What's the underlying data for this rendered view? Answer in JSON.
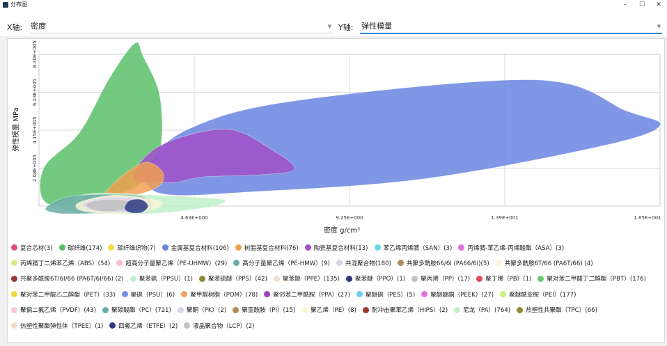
{
  "window": {
    "title": "分布图",
    "controls": [
      "–",
      "☐",
      "✕"
    ]
  },
  "toolbar": {
    "x_label": "X轴:",
    "x_value": "密度",
    "y_label": "Y轴:",
    "y_value": "弹性模量"
  },
  "chart_data": {
    "type": "area",
    "xlabel": "密度 g/cm³",
    "ylabel": "弹性模量 MPa",
    "x_ticks": [
      "4.63E+000",
      "9.25E+000",
      "1.39E+001",
      "1.85E+001"
    ],
    "y_ticks": [
      "2.08E+005",
      "4.15E+005",
      "6.23E+005",
      "8.30E+005"
    ],
    "xlim": [
      0,
      18.5
    ],
    "ylim": [
      0,
      830000
    ],
    "grid": true,
    "legend_position": "bottom",
    "series": [
      {
        "name": "复合芯材(3)",
        "color": "#e0507a"
      },
      {
        "name": "碳纤维(174)",
        "color": "#5cbf6a"
      },
      {
        "name": "碳纤维织物(7)",
        "color": "#f5dc4a"
      },
      {
        "name": "金属基复合材料(106)",
        "color": "#6a85e0"
      },
      {
        "name": "树脂基复合材料(76)",
        "color": "#f0a050"
      },
      {
        "name": "陶瓷基复合材料(13)",
        "color": "#a050c8"
      },
      {
        "name": "苯乙烯丙烯腈（SAN）(3)",
        "color": "#6ad8ea"
      },
      {
        "name": "丙烯腈-苯乙烯-丙烯酸酯（ASA）(3)",
        "color": "#e070e0"
      },
      {
        "name": "丙烯腈丁二烯苯乙烯（ABS）(54)",
        "color": "#d6ee88"
      },
      {
        "name": "超高分子量聚乙烯（PE-UHMW）(29)",
        "color": "#f6c0cf"
      },
      {
        "name": "高分子量聚乙烯（PE-HMW）(9)",
        "color": "#6aaca6"
      },
      {
        "name": "共混聚合物(180)",
        "color": "#dcd0f0"
      },
      {
        "name": "共聚多酰胺66/6I (PA66/6I)(5)",
        "color": "#b08a5a"
      },
      {
        "name": "共聚多酰胺6T/66 (PA6T/66) (4)",
        "color": "#fbf4d8"
      },
      {
        "name": "共聚多酰胺6T/6I/66 (PA6T/6I/66) (2)",
        "color": "#9a3a34"
      },
      {
        "name": "聚苯砜（PPSU）(1)",
        "color": "#c0f0c8"
      },
      {
        "name": "聚苯硫醚（PPS）(42)",
        "color": "#8a8a3a"
      },
      {
        "name": "聚苯醚（PPE）(135)",
        "color": "#f6dcc8"
      },
      {
        "name": "聚苯醚（PPO）(1)",
        "color": "#2c3a80"
      },
      {
        "name": "聚丙烯（PP）(17)",
        "color": "#c0c0c0"
      },
      {
        "name": "聚丁烯（PB）(1)",
        "color": "#e04a5a"
      },
      {
        "name": "聚对苯二甲酸丁二醇酯（PBT）(176)",
        "color": "#6cc870"
      },
      {
        "name": "聚对苯二甲酸乙二醇酯（PET）(33)",
        "color": "#f0dc40"
      },
      {
        "name": "聚砜（PSU）(6)",
        "color": "#7890e0"
      },
      {
        "name": "聚甲醛树脂（POM）(78)",
        "color": "#f0a060"
      },
      {
        "name": "聚邻苯二甲酰胺（PPA）(27)",
        "color": "#a040c0"
      },
      {
        "name": "聚醚砜（PES）(5)",
        "color": "#6ad0ea"
      },
      {
        "name": "聚醚醚酮（PEEK）(27)",
        "color": "#e070e0"
      },
      {
        "name": "聚醚酰亚胺（PEI）(177)",
        "color": "#d0ee80"
      },
      {
        "name": "聚偏二氟乙烯（PVDF）(43)",
        "color": "#f6c8d6"
      },
      {
        "name": "聚碳酸酯（PC）(721)",
        "color": "#6aaca6"
      },
      {
        "name": "聚酮（PK）(2)",
        "color": "#dcd0f0"
      },
      {
        "name": "聚亚酰胺（PI）(15)",
        "color": "#b08a5a"
      },
      {
        "name": "聚乙烯（PE）(8)",
        "color": "#fbf4c8"
      },
      {
        "name": "耐冲击聚苯乙烯（HIPS）(2)",
        "color": "#9a3a30"
      },
      {
        "name": "尼龙（PA）(764)",
        "color": "#c0f0c8"
      },
      {
        "name": "热塑性共聚酯（TPC）(66)",
        "color": "#8a8a30"
      },
      {
        "name": "热塑性聚酯弹性体（TPEE）(1)",
        "color": "#f6dcc8"
      },
      {
        "name": "四氟乙烯（ETFE）(2)",
        "color": "#2c3a80"
      },
      {
        "name": "液晶聚合物（LCP）(2)",
        "color": "#c0c0c0"
      }
    ],
    "regions": [
      {
        "series": "碳纤维(174)",
        "color": "#5cbf6a",
        "points": [
          [
            0.15,
            210000
          ],
          [
            1.2,
            400000
          ],
          [
            2.1,
            700000
          ],
          [
            2.85,
            890000
          ],
          [
            3.1,
            820000
          ],
          [
            3.6,
            600000
          ],
          [
            3.6,
            300000
          ],
          [
            3.0,
            120000
          ],
          [
            1.5,
            20000
          ],
          [
            0.2,
            20000
          ]
        ]
      },
      {
        "series": "金属基复合材料(106)",
        "color": "#6a85e0",
        "points": [
          [
            3.3,
            230000
          ],
          [
            4.5,
            425000
          ],
          [
            7.6,
            575000
          ],
          [
            14.8,
            690000
          ],
          [
            17.5,
            520000
          ],
          [
            18.5,
            440000
          ],
          [
            16.8,
            330000
          ],
          [
            11.5,
            150000
          ],
          [
            6.5,
            80000
          ],
          [
            3.6,
            70000
          ]
        ]
      },
      {
        "series": "陶瓷基复合材料(13)",
        "color": "#a050c8",
        "points": [
          [
            2.8,
            150000
          ],
          [
            3.6,
            330000
          ],
          [
            5.6,
            420000
          ],
          [
            7.0,
            300000
          ],
          [
            7.6,
            200000
          ],
          [
            6.5,
            170000
          ],
          [
            4.9,
            160000
          ],
          [
            4.0,
            130000
          ]
        ]
      },
      {
        "series": "树脂基复合材料(76)",
        "color": "#f0a050",
        "points": [
          [
            1.9,
            50000
          ],
          [
            2.5,
            170000
          ],
          [
            3.2,
            240000
          ],
          [
            3.7,
            180000
          ],
          [
            3.5,
            100000
          ],
          [
            2.4,
            40000
          ]
        ]
      },
      {
        "series": "聚醚酰亚胺（PEI）(177)",
        "color": "#d0ee80",
        "points": [
          [
            1.1,
            40000
          ],
          [
            2.1,
            50000
          ],
          [
            3.0,
            40000
          ],
          [
            2.2,
            25000
          ]
        ]
      },
      {
        "series": "尼龙（PA）(764)",
        "color": "#c0f0c8",
        "points": [
          [
            0.6,
            20000
          ],
          [
            1.6,
            70000
          ],
          [
            3.4,
            60000
          ],
          [
            5.3,
            40000
          ],
          [
            5.5,
            20000
          ],
          [
            4.9,
            -10000
          ],
          [
            3.4,
            -40000
          ],
          [
            1.5,
            -40000
          ],
          [
            0.6,
            -10000
          ]
        ]
      },
      {
        "series": "聚碳酸酯（PC）(721)",
        "color": "#6aaca6",
        "points": [
          [
            0.2,
            -10000
          ],
          [
            1.0,
            55000
          ],
          [
            2.8,
            60000
          ],
          [
            3.4,
            20000
          ],
          [
            3.1,
            -30000
          ],
          [
            1.6,
            -40000
          ],
          [
            0.6,
            -40000
          ]
        ]
      },
      {
        "series": "共聚多酰胺6T/66 (PA6T/66) (4)",
        "color": "#fbf4d8",
        "points": [
          [
            1.2,
            20000
          ],
          [
            2.2,
            60000
          ],
          [
            3.3,
            40000
          ],
          [
            3.7,
            10000
          ],
          [
            3.1,
            -30000
          ],
          [
            1.9,
            -40000
          ],
          [
            1.2,
            -20000
          ]
        ]
      },
      {
        "series": "聚酮（PK）(2)",
        "color": "#dcd0f0",
        "points": [
          [
            1.3,
            10000
          ],
          [
            2.0,
            45000
          ],
          [
            2.9,
            40000
          ],
          [
            3.2,
            0
          ],
          [
            2.8,
            -30000
          ],
          [
            1.8,
            -30000
          ]
        ]
      },
      {
        "series": "液晶聚合物（LCP）(2)",
        "color": "#c0c0c0",
        "points": [
          [
            1.4,
            10000
          ],
          [
            1.9,
            35000
          ],
          [
            2.6,
            30000
          ],
          [
            2.8,
            0
          ],
          [
            2.4,
            -25000
          ],
          [
            1.7,
            -25000
          ]
        ]
      },
      {
        "series": "聚苯醚（PPO）(1)",
        "color": "#2c3a80",
        "points": [
          [
            2.55,
            -10000
          ],
          [
            2.7,
            30000
          ],
          [
            3.05,
            35000
          ],
          [
            3.25,
            0
          ],
          [
            3.05,
            -35000
          ],
          [
            2.7,
            -35000
          ]
        ]
      }
    ]
  }
}
